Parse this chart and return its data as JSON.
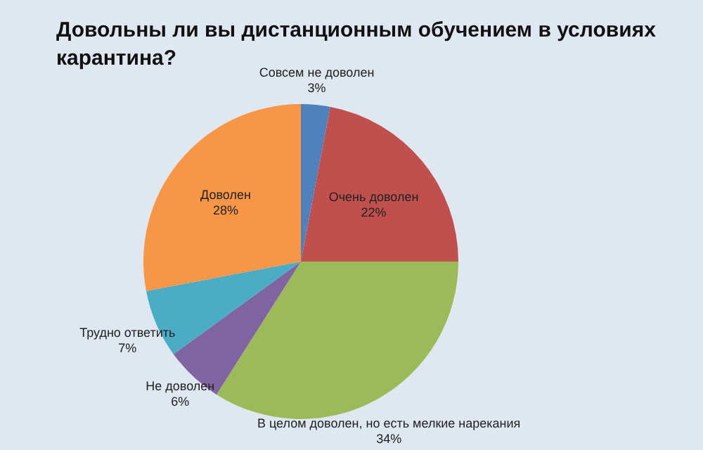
{
  "chart_data": {
    "type": "pie",
    "title": "Довольны ли вы дистанционным обучением в условиях карантина?",
    "categories": [
      "Совсем не доволен",
      "Очень доволен",
      "В целом доволен, но есть мелкие нарекания",
      "Не доволен",
      "Трудно ответить",
      "Доволен"
    ],
    "values": [
      3,
      22,
      34,
      6,
      7,
      28
    ],
    "value_labels": [
      "3%",
      "22%",
      "34%",
      "6%",
      "7%",
      "28%"
    ],
    "colors": [
      "#4f81bd",
      "#c0504d",
      "#9bbb59",
      "#8064a2",
      "#4bacc6",
      "#f79646"
    ]
  }
}
